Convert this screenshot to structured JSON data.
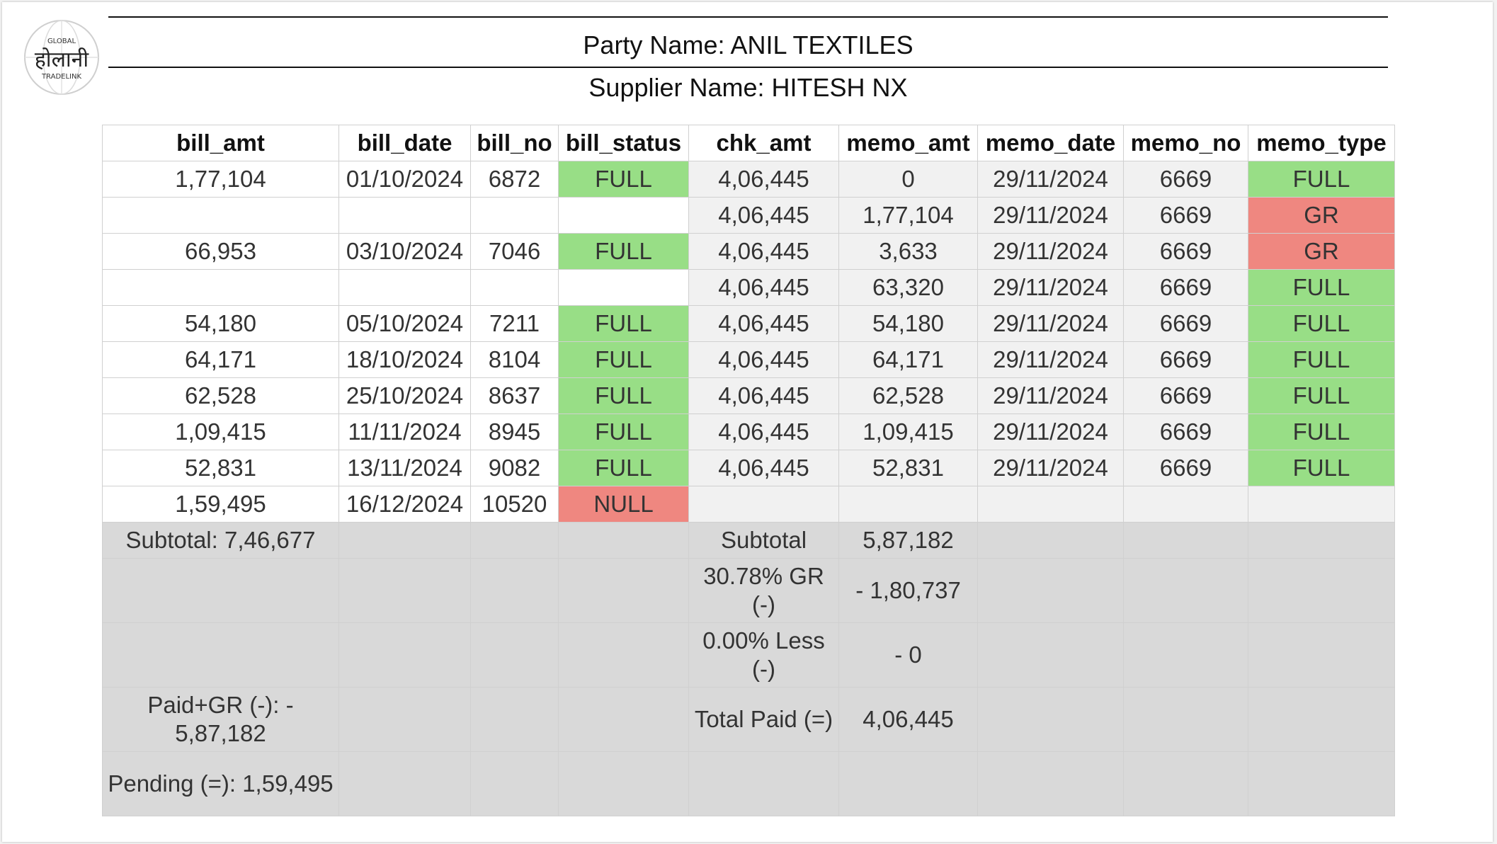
{
  "header": {
    "party_name": "Party Name: ANIL TEXTILES",
    "supplier_name": "Supplier Name: HITESH NX",
    "logo": {
      "top_text": "GLOBAL",
      "main_text": "होलानी",
      "bottom_text": "TRADELINK"
    }
  },
  "columns": [
    "bill_amt",
    "bill_date",
    "bill_no",
    "bill_status",
    "chk_amt",
    "memo_amt",
    "memo_date",
    "memo_no",
    "memo_type"
  ],
  "rows": [
    {
      "bill_amt": "1,77,104",
      "bill_date": "01/10/2024",
      "bill_no": "6872",
      "bill_status": "FULL",
      "chk_amt": "4,06,445",
      "memo_amt": "0",
      "memo_date": "29/11/2024",
      "memo_no": "6669",
      "memo_type": "FULL"
    },
    {
      "bill_amt": "",
      "bill_date": "",
      "bill_no": "",
      "bill_status": "",
      "chk_amt": "4,06,445",
      "memo_amt": "1,77,104",
      "memo_date": "29/11/2024",
      "memo_no": "6669",
      "memo_type": "GR"
    },
    {
      "bill_amt": "66,953",
      "bill_date": "03/10/2024",
      "bill_no": "7046",
      "bill_status": "FULL",
      "chk_amt": "4,06,445",
      "memo_amt": "3,633",
      "memo_date": "29/11/2024",
      "memo_no": "6669",
      "memo_type": "GR"
    },
    {
      "bill_amt": "",
      "bill_date": "",
      "bill_no": "",
      "bill_status": "",
      "chk_amt": "4,06,445",
      "memo_amt": "63,320",
      "memo_date": "29/11/2024",
      "memo_no": "6669",
      "memo_type": "FULL"
    },
    {
      "bill_amt": "54,180",
      "bill_date": "05/10/2024",
      "bill_no": "7211",
      "bill_status": "FULL",
      "chk_amt": "4,06,445",
      "memo_amt": "54,180",
      "memo_date": "29/11/2024",
      "memo_no": "6669",
      "memo_type": "FULL"
    },
    {
      "bill_amt": "64,171",
      "bill_date": "18/10/2024",
      "bill_no": "8104",
      "bill_status": "FULL",
      "chk_amt": "4,06,445",
      "memo_amt": "64,171",
      "memo_date": "29/11/2024",
      "memo_no": "6669",
      "memo_type": "FULL"
    },
    {
      "bill_amt": "62,528",
      "bill_date": "25/10/2024",
      "bill_no": "8637",
      "bill_status": "FULL",
      "chk_amt": "4,06,445",
      "memo_amt": "62,528",
      "memo_date": "29/11/2024",
      "memo_no": "6669",
      "memo_type": "FULL"
    },
    {
      "bill_amt": "1,09,415",
      "bill_date": "11/11/2024",
      "bill_no": "8945",
      "bill_status": "FULL",
      "chk_amt": "4,06,445",
      "memo_amt": "1,09,415",
      "memo_date": "29/11/2024",
      "memo_no": "6669",
      "memo_type": "FULL"
    },
    {
      "bill_amt": "52,831",
      "bill_date": "13/11/2024",
      "bill_no": "9082",
      "bill_status": "FULL",
      "chk_amt": "4,06,445",
      "memo_amt": "52,831",
      "memo_date": "29/11/2024",
      "memo_no": "6669",
      "memo_type": "FULL"
    },
    {
      "bill_amt": "1,59,495",
      "bill_date": "16/12/2024",
      "bill_no": "10520",
      "bill_status": "NULL",
      "chk_amt": "",
      "memo_amt": "",
      "memo_date": "",
      "memo_no": "",
      "memo_type": ""
    }
  ],
  "summary": [
    {
      "left": "Subtotal: 7,46,677",
      "label": "Subtotal",
      "value": "5,87,182"
    },
    {
      "left": "",
      "label": "30.78% GR (-)",
      "value": "- 1,80,737"
    },
    {
      "left": "",
      "label": "0.00% Less (-)",
      "value": "- 0"
    },
    {
      "left": "Paid+GR (-): - 5,87,182",
      "label": "Total Paid (=)",
      "value": "4,06,445"
    },
    {
      "left": "Pending (=): 1,59,495",
      "label": "",
      "value": ""
    }
  ],
  "colors": {
    "full": "#98de86",
    "gr": "#ef8780",
    "null": "#ef8780",
    "summary_bg": "#d9d9d9",
    "row_bg": "#f1f1f1"
  }
}
